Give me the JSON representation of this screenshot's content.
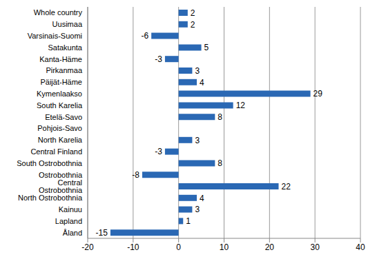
{
  "chart_data": {
    "type": "bar",
    "orientation": "horizontal",
    "categories": [
      "Whole country",
      "Uusimaa",
      "Varsinais-Suomi",
      "Satakunta",
      "Kanta-Häme",
      "Pirkanmaa",
      "Päijät-Häme",
      "Kymenlaakso",
      "South Karelia",
      "Etelä-Savo",
      "Pohjois-Savo",
      "North Karelia",
      "Central Finland",
      "South Ostrobothnia",
      "Ostrobothnia",
      "Central Ostrobothnia",
      "North Ostrobothnia",
      "Kainuu",
      "Lapland",
      "Åland"
    ],
    "values": [
      2,
      2,
      -6,
      5,
      -3,
      3,
      4,
      29,
      12,
      8,
      0,
      3,
      -3,
      8,
      -8,
      22,
      4,
      3,
      1,
      -15
    ],
    "color": "#2a68b4",
    "xlim": [
      -20,
      40
    ],
    "xticks": [
      -20,
      -10,
      0,
      10,
      20,
      30,
      40
    ],
    "grid": true,
    "data_labels": true
  }
}
